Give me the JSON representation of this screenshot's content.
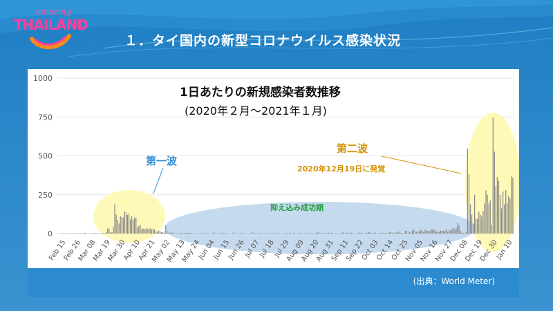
{
  "logo": {
    "small": "amazing",
    "big": "THAILAND"
  },
  "slide_title": "１．タイ国内の新型コロナウイルス感染状況",
  "source": "(出典：World Meter)",
  "colors": {
    "bars": "#8a8a8a",
    "wave_highlight": "#fff9b8",
    "suppression_ellipse": "#bcd4ec",
    "first_wave_text": "#2f8fd8",
    "second_wave_text": "#d4940a",
    "suppression_text": "#1e9b3a"
  },
  "annotations": {
    "first_wave": "第一波",
    "second_wave": "第二波",
    "second_wave_date": "2020年12月19日に発覚",
    "suppression": "抑え込み成功期"
  },
  "chart_data": {
    "type": "bar",
    "title": "1日あたりの新規感染者数推移",
    "subtitle": "(2020年２月～2021年１月)",
    "xlabel": "",
    "ylabel": "",
    "ylim": [
      0,
      1000
    ],
    "y_ticks": [
      0,
      250,
      500,
      750,
      1000
    ],
    "grid": true,
    "x_tick_labels": [
      "Feb 15",
      "Feb 26",
      "Mar 08",
      "Mar 19",
      "Mar 30",
      "Apr 10",
      "Apr 21",
      "May 02",
      "May 13",
      "May 24",
      "Jun 04",
      "Jun 15",
      "Jun 26",
      "Jul 07",
      "Jul 18",
      "Jul 29",
      "Aug 09",
      "Aug 20",
      "Aug 31",
      "Sep 11",
      "Sep 22",
      "Oct 03",
      "Oct 14",
      "Oct 25",
      "Nov 05",
      "Nov 16",
      "Nov 27",
      "Dec 08",
      "Dec 19",
      "Dec 30",
      "Jan 10"
    ],
    "values": [
      0,
      0,
      0,
      1,
      2,
      0,
      0,
      1,
      0,
      0,
      0,
      0,
      1,
      0,
      2,
      0,
      1,
      2,
      0,
      5,
      0,
      1,
      0,
      0,
      0,
      3,
      5,
      0,
      1,
      1,
      2,
      2,
      5,
      3,
      10,
      33,
      32,
      11,
      8,
      43,
      188,
      122,
      89,
      65,
      111,
      106,
      103,
      143,
      136,
      120,
      127,
      91,
      111,
      89,
      102,
      103,
      38,
      51,
      54,
      27,
      34,
      28,
      33,
      30,
      32,
      33,
      28,
      30,
      27,
      15,
      13,
      19,
      15,
      9,
      7,
      7,
      53,
      15,
      7,
      6,
      6,
      9,
      0,
      4,
      1,
      3,
      2,
      6,
      0,
      4,
      4,
      5,
      6,
      3,
      3,
      0,
      5,
      0,
      2,
      1,
      1,
      3,
      4,
      0,
      2,
      3,
      2,
      0,
      1,
      1,
      8,
      1,
      0,
      2,
      0,
      6,
      1,
      4,
      3,
      3,
      0,
      0,
      1,
      2,
      8,
      1,
      0,
      0,
      1,
      4,
      5,
      0,
      1,
      0,
      2,
      1,
      2,
      11,
      5,
      2,
      0,
      3,
      4,
      3,
      0,
      2,
      1,
      1,
      1,
      2,
      4,
      0,
      3,
      1,
      4,
      2,
      2,
      0,
      0,
      3,
      1,
      2,
      4,
      0,
      6,
      0,
      3,
      3,
      0,
      1,
      5,
      2,
      3,
      1,
      2,
      2,
      3,
      1,
      1,
      4,
      1,
      0,
      5,
      7,
      8,
      1,
      4,
      4,
      2,
      3,
      0,
      6,
      4,
      6,
      2,
      2,
      1,
      2,
      1,
      2,
      5,
      9,
      0,
      4,
      8,
      0,
      7,
      5,
      3,
      2,
      0,
      2,
      3,
      8,
      6,
      3,
      0,
      5,
      4,
      9,
      12,
      3,
      4,
      3,
      7,
      2,
      1,
      4,
      7,
      3,
      5,
      2,
      5,
      3,
      9,
      8,
      4,
      8,
      3,
      8,
      15,
      7,
      5,
      1,
      4,
      17,
      18,
      2,
      13,
      7,
      18,
      26,
      14,
      11,
      13,
      16,
      24,
      15,
      10,
      25,
      21,
      17,
      14,
      22,
      29,
      21,
      23,
      12,
      14,
      10,
      20,
      17,
      17,
      19,
      27,
      12,
      21,
      20,
      29,
      37,
      25,
      36,
      69,
      52,
      18,
      6,
      5,
      3,
      10,
      548,
      382,
      188,
      121,
      64,
      250,
      98,
      94,
      141,
      121,
      110,
      144,
      194,
      279,
      250,
      194,
      213,
      56,
      745,
      527,
      305,
      365,
      339,
      249,
      162,
      271,
      188,
      280,
      198,
      243,
      225,
      367,
      360
    ]
  }
}
